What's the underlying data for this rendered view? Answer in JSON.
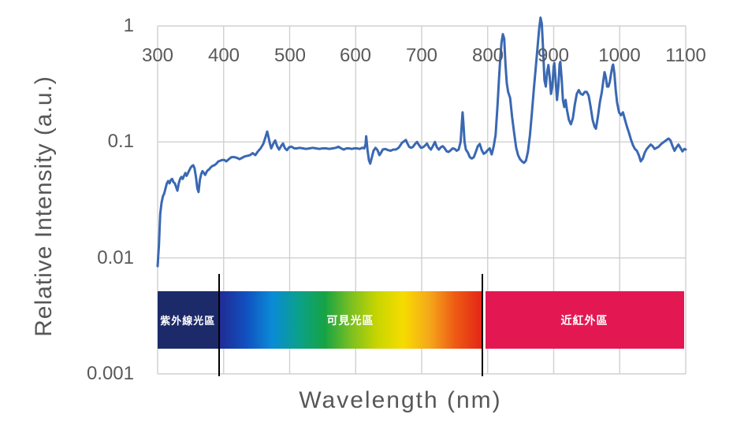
{
  "chart_data": {
    "type": "line",
    "title": "",
    "xlabel": "Wavelength (nm)",
    "ylabel": "Relative Intensity (a.u.)",
    "x_scale": "linear",
    "y_scale": "log",
    "x_range": [
      300,
      1100
    ],
    "y_range": [
      0.001,
      1
    ],
    "x_ticks": [
      300,
      400,
      500,
      600,
      700,
      800,
      900,
      1000,
      1100
    ],
    "x_tick_labels": [
      "300",
      "400",
      "500",
      "600",
      "700",
      "800",
      "900",
      "1000",
      "1100"
    ],
    "y_ticks": [
      1,
      0.1,
      0.01,
      0.001
    ],
    "y_tick_labels": [
      "1",
      "0.1",
      "0.01",
      "0.001"
    ],
    "grid": true,
    "legend": "none",
    "series": [
      {
        "name": "relative-intensity-spectrum",
        "color": "#3A68B2",
        "points": [
          [
            300,
            0.0085
          ],
          [
            301,
            0.0105
          ],
          [
            302,
            0.013
          ],
          [
            303,
            0.018
          ],
          [
            304,
            0.024
          ],
          [
            306,
            0.03
          ],
          [
            308,
            0.034
          ],
          [
            310,
            0.036
          ],
          [
            312,
            0.04
          ],
          [
            314,
            0.044
          ],
          [
            316,
            0.046
          ],
          [
            318,
            0.044
          ],
          [
            320,
            0.047
          ],
          [
            322,
            0.048
          ],
          [
            324,
            0.045
          ],
          [
            326,
            0.044
          ],
          [
            328,
            0.041
          ],
          [
            330,
            0.038
          ],
          [
            332,
            0.044
          ],
          [
            334,
            0.048
          ],
          [
            336,
            0.05
          ],
          [
            338,
            0.048
          ],
          [
            340,
            0.051
          ],
          [
            342,
            0.054
          ],
          [
            344,
            0.051
          ],
          [
            346,
            0.054
          ],
          [
            348,
            0.057
          ],
          [
            350,
            0.06
          ],
          [
            352,
            0.062
          ],
          [
            354,
            0.063
          ],
          [
            356,
            0.059
          ],
          [
            358,
            0.05
          ],
          [
            360,
            0.04
          ],
          [
            362,
            0.037
          ],
          [
            364,
            0.047
          ],
          [
            366,
            0.053
          ],
          [
            368,
            0.056
          ],
          [
            370,
            0.054
          ],
          [
            372,
            0.052
          ],
          [
            374,
            0.055
          ],
          [
            376,
            0.057
          ],
          [
            378,
            0.058
          ],
          [
            380,
            0.06
          ],
          [
            383,
            0.062
          ],
          [
            386,
            0.063
          ],
          [
            389,
            0.065
          ],
          [
            392,
            0.068
          ],
          [
            395,
            0.069
          ],
          [
            398,
            0.07
          ],
          [
            401,
            0.07
          ],
          [
            404,
            0.068
          ],
          [
            408,
            0.071
          ],
          [
            412,
            0.074
          ],
          [
            416,
            0.074
          ],
          [
            420,
            0.073
          ],
          [
            424,
            0.071
          ],
          [
            428,
            0.073
          ],
          [
            432,
            0.075
          ],
          [
            436,
            0.076
          ],
          [
            440,
            0.077
          ],
          [
            444,
            0.08
          ],
          [
            448,
            0.077
          ],
          [
            452,
            0.083
          ],
          [
            456,
            0.088
          ],
          [
            460,
            0.096
          ],
          [
            463,
            0.108
          ],
          [
            466,
            0.123
          ],
          [
            468,
            0.11
          ],
          [
            470,
            0.097
          ],
          [
            472,
            0.088
          ],
          [
            475,
            0.096
          ],
          [
            478,
            0.103
          ],
          [
            481,
            0.092
          ],
          [
            484,
            0.086
          ],
          [
            487,
            0.092
          ],
          [
            490,
            0.097
          ],
          [
            493,
            0.088
          ],
          [
            496,
            0.085
          ],
          [
            499,
            0.09
          ],
          [
            503,
            0.091
          ],
          [
            507,
            0.088
          ],
          [
            511,
            0.088
          ],
          [
            515,
            0.089
          ],
          [
            520,
            0.088
          ],
          [
            525,
            0.087
          ],
          [
            530,
            0.088
          ],
          [
            535,
            0.089
          ],
          [
            540,
            0.088
          ],
          [
            545,
            0.087
          ],
          [
            550,
            0.088
          ],
          [
            555,
            0.088
          ],
          [
            560,
            0.087
          ],
          [
            565,
            0.088
          ],
          [
            570,
            0.089
          ],
          [
            574,
            0.091
          ],
          [
            578,
            0.088
          ],
          [
            582,
            0.086
          ],
          [
            586,
            0.088
          ],
          [
            590,
            0.088
          ],
          [
            594,
            0.087
          ],
          [
            598,
            0.088
          ],
          [
            602,
            0.088
          ],
          [
            606,
            0.087
          ],
          [
            610,
            0.089
          ],
          [
            613,
            0.088
          ],
          [
            615,
            0.095
          ],
          [
            616,
            0.112
          ],
          [
            618,
            0.085
          ],
          [
            620,
            0.07
          ],
          [
            622,
            0.065
          ],
          [
            624,
            0.072
          ],
          [
            627,
            0.084
          ],
          [
            630,
            0.089
          ],
          [
            633,
            0.085
          ],
          [
            636,
            0.077
          ],
          [
            638,
            0.08
          ],
          [
            641,
            0.086
          ],
          [
            645,
            0.087
          ],
          [
            649,
            0.085
          ],
          [
            653,
            0.084
          ],
          [
            657,
            0.086
          ],
          [
            661,
            0.086
          ],
          [
            665,
            0.089
          ],
          [
            668,
            0.094
          ],
          [
            670,
            0.098
          ],
          [
            673,
            0.101
          ],
          [
            676,
            0.104
          ],
          [
            678,
            0.098
          ],
          [
            681,
            0.091
          ],
          [
            684,
            0.089
          ],
          [
            687,
            0.091
          ],
          [
            690,
            0.096
          ],
          [
            693,
            0.1
          ],
          [
            696,
            0.094
          ],
          [
            699,
            0.089
          ],
          [
            702,
            0.09
          ],
          [
            705,
            0.093
          ],
          [
            708,
            0.097
          ],
          [
            711,
            0.09
          ],
          [
            714,
            0.086
          ],
          [
            717,
            0.092
          ],
          [
            720,
            0.1
          ],
          [
            723,
            0.09
          ],
          [
            726,
            0.086
          ],
          [
            729,
            0.09
          ],
          [
            732,
            0.092
          ],
          [
            735,
            0.088
          ],
          [
            738,
            0.083
          ],
          [
            741,
            0.082
          ],
          [
            744,
            0.085
          ],
          [
            747,
            0.088
          ],
          [
            750,
            0.087
          ],
          [
            753,
            0.084
          ],
          [
            756,
            0.086
          ],
          [
            759,
            0.1
          ],
          [
            761,
            0.15
          ],
          [
            762,
            0.18
          ],
          [
            763,
            0.15
          ],
          [
            765,
            0.1
          ],
          [
            767,
            0.086
          ],
          [
            770,
            0.081
          ],
          [
            773,
            0.074
          ],
          [
            776,
            0.072
          ],
          [
            779,
            0.074
          ],
          [
            782,
            0.082
          ],
          [
            785,
            0.092
          ],
          [
            788,
            0.096
          ],
          [
            791,
            0.085
          ],
          [
            794,
            0.079
          ],
          [
            797,
            0.081
          ],
          [
            800,
            0.085
          ],
          [
            803,
            0.088
          ],
          [
            806,
            0.078
          ],
          [
            809,
            0.091
          ],
          [
            812,
            0.115
          ],
          [
            815,
            0.21
          ],
          [
            817,
            0.34
          ],
          [
            819,
            0.52
          ],
          [
            821,
            0.72
          ],
          [
            823,
            0.85
          ],
          [
            825,
            0.78
          ],
          [
            827,
            0.46
          ],
          [
            829,
            0.32
          ],
          [
            831,
            0.27
          ],
          [
            834,
            0.24
          ],
          [
            837,
            0.165
          ],
          [
            840,
            0.12
          ],
          [
            843,
            0.09
          ],
          [
            846,
            0.077
          ],
          [
            849,
            0.071
          ],
          [
            852,
            0.068
          ],
          [
            855,
            0.066
          ],
          [
            858,
            0.069
          ],
          [
            861,
            0.082
          ],
          [
            864,
            0.115
          ],
          [
            867,
            0.18
          ],
          [
            870,
            0.29
          ],
          [
            873,
            0.45
          ],
          [
            876,
            0.7
          ],
          [
            878,
            0.95
          ],
          [
            880,
            1.18
          ],
          [
            882,
            1.05
          ],
          [
            884,
            0.62
          ],
          [
            886,
            0.34
          ],
          [
            888,
            0.3
          ],
          [
            890,
            0.4
          ],
          [
            892,
            0.46
          ],
          [
            894,
            0.36
          ],
          [
            896,
            0.26
          ],
          [
            898,
            0.3
          ],
          [
            900,
            0.45
          ],
          [
            901,
            0.48
          ],
          [
            903,
            0.34
          ],
          [
            905,
            0.23
          ],
          [
            907,
            0.3
          ],
          [
            909,
            0.47
          ],
          [
            910,
            0.49
          ],
          [
            912,
            0.36
          ],
          [
            914,
            0.23
          ],
          [
            916,
            0.2
          ],
          [
            918,
            0.23
          ],
          [
            920,
            0.19
          ],
          [
            923,
            0.155
          ],
          [
            926,
            0.142
          ],
          [
            929,
            0.16
          ],
          [
            932,
            0.21
          ],
          [
            935,
            0.26
          ],
          [
            938,
            0.28
          ],
          [
            941,
            0.26
          ],
          [
            944,
            0.255
          ],
          [
            947,
            0.27
          ],
          [
            950,
            0.27
          ],
          [
            953,
            0.25
          ],
          [
            956,
            0.2
          ],
          [
            959,
            0.155
          ],
          [
            962,
            0.135
          ],
          [
            964,
            0.13
          ],
          [
            967,
            0.165
          ],
          [
            970,
            0.22
          ],
          [
            973,
            0.27
          ],
          [
            975,
            0.33
          ],
          [
            977,
            0.4
          ],
          [
            979,
            0.36
          ],
          [
            981,
            0.3
          ],
          [
            983,
            0.3
          ],
          [
            985,
            0.33
          ],
          [
            987,
            0.39
          ],
          [
            989,
            0.45
          ],
          [
            990,
            0.465
          ],
          [
            992,
            0.39
          ],
          [
            994,
            0.28
          ],
          [
            996,
            0.22
          ],
          [
            999,
            0.18
          ],
          [
            1002,
            0.17
          ],
          [
            1005,
            0.18
          ],
          [
            1008,
            0.155
          ],
          [
            1011,
            0.135
          ],
          [
            1014,
            0.12
          ],
          [
            1017,
            0.105
          ],
          [
            1020,
            0.094
          ],
          [
            1023,
            0.087
          ],
          [
            1026,
            0.084
          ],
          [
            1029,
            0.077
          ],
          [
            1032,
            0.068
          ],
          [
            1035,
            0.072
          ],
          [
            1038,
            0.081
          ],
          [
            1041,
            0.087
          ],
          [
            1044,
            0.091
          ],
          [
            1047,
            0.095
          ],
          [
            1050,
            0.092
          ],
          [
            1053,
            0.087
          ],
          [
            1056,
            0.089
          ],
          [
            1059,
            0.091
          ],
          [
            1062,
            0.095
          ],
          [
            1065,
            0.098
          ],
          [
            1068,
            0.101
          ],
          [
            1071,
            0.104
          ],
          [
            1074,
            0.107
          ],
          [
            1077,
            0.103
          ],
          [
            1080,
            0.092
          ],
          [
            1083,
            0.084
          ],
          [
            1086,
            0.09
          ],
          [
            1089,
            0.095
          ],
          [
            1092,
            0.089
          ],
          [
            1095,
            0.083
          ],
          [
            1098,
            0.087
          ],
          [
            1100,
            0.086
          ]
        ]
      }
    ]
  },
  "regions": {
    "uv": {
      "label": "紫外線光區",
      "range_nm": [
        300,
        392
      ],
      "color": "#1C2A69",
      "text_color": "#FFFFFF"
    },
    "visible": {
      "label": "可見光區",
      "range_nm": [
        394,
        791
      ],
      "text_color": "#FFFFFF",
      "gradient": [
        "#202C94",
        "#1150C0",
        "#0A8BD6",
        "#0BA08C",
        "#16A345",
        "#7ABF22",
        "#C8D500",
        "#F6DC00",
        "#F5A81B",
        "#EE5A14",
        "#E32617"
      ]
    },
    "nir": {
      "label": "近紅外區",
      "range_nm": [
        796,
        1097
      ],
      "color": "#E31853",
      "text_color": "#FFFFFF"
    },
    "divider_nm": [
      392,
      792
    ]
  },
  "colors": {
    "background": "#FFFFFF",
    "gridline": "#D0D0D0",
    "axis_text": "#595959",
    "title_text": "#575757",
    "divider_line": "#000000"
  }
}
